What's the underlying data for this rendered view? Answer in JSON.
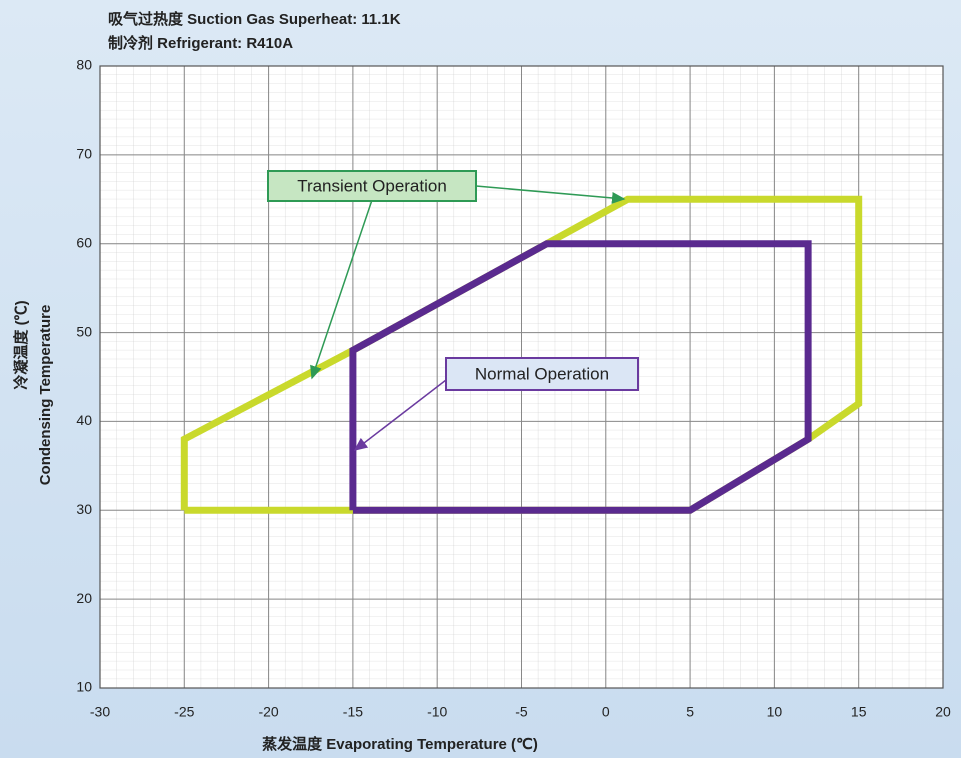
{
  "chart_data": {
    "type": "line",
    "title": "吸气过热度  Suction Gas Superheat: 11.1K",
    "subtitle": "制冷剂  Refrigerant: R410A",
    "xlabel": "蒸发温度  Evaporating Temperature (℃)",
    "ylabel": [
      "冷凝温度      (℃)",
      "Condensing Temperature"
    ],
    "xlim": [
      -30,
      20
    ],
    "xticks": [
      -30,
      -25,
      -20,
      -15,
      -10,
      -5,
      0,
      5,
      10,
      15,
      20
    ],
    "ylim": [
      10,
      80
    ],
    "yticks": [
      10,
      20,
      30,
      40,
      50,
      60,
      70,
      80
    ],
    "grid": true,
    "series": [
      {
        "name": "Transient Operation",
        "color": "#c9d92c",
        "x": [
          -25,
          -25,
          -15,
          -3.5,
          1.3,
          15,
          15,
          12,
          5,
          -25
        ],
        "values": [
          30,
          38,
          48,
          60,
          65,
          65,
          42,
          38,
          30,
          30
        ]
      },
      {
        "name": "Normal Operation",
        "color": "#5a2a8f",
        "x": [
          -15,
          -15,
          -3.5,
          12,
          12,
          5,
          -15
        ],
        "values": [
          30,
          48,
          60,
          60,
          38,
          30,
          30
        ]
      }
    ]
  }
}
